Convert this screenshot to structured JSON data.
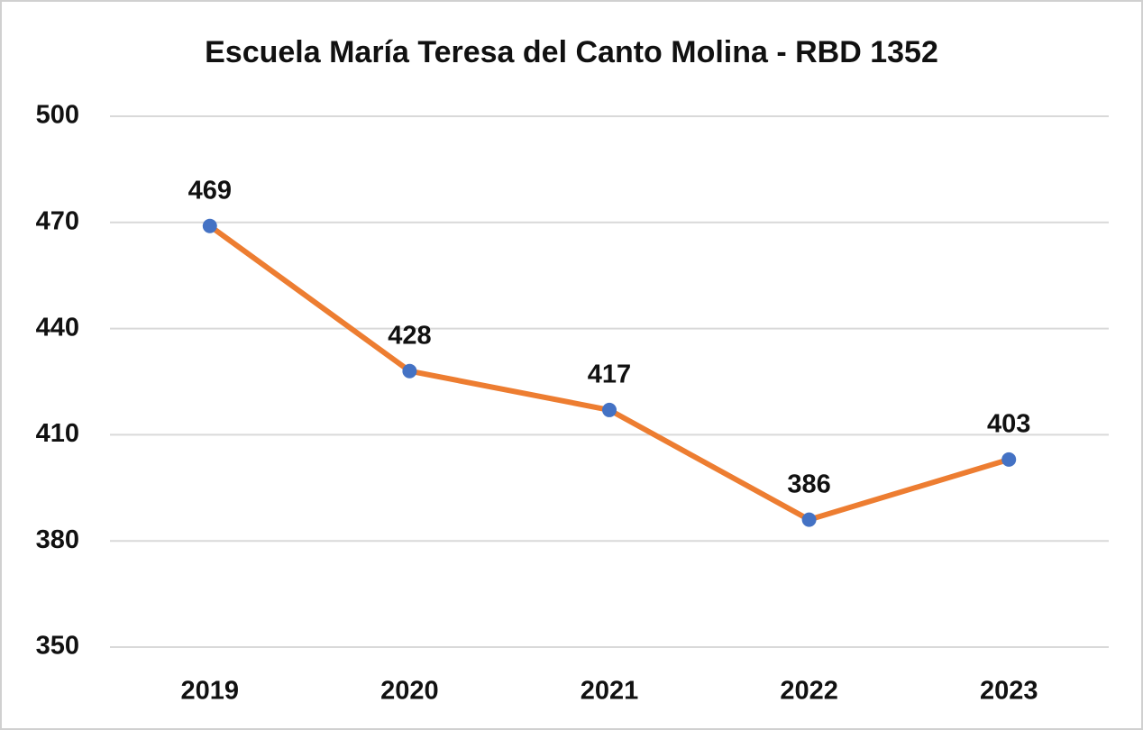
{
  "chart_data": {
    "type": "line",
    "title": "Escuela María Teresa del Canto Molina - RBD 1352",
    "categories": [
      "2019",
      "2020",
      "2021",
      "2022",
      "2023"
    ],
    "series": [
      {
        "name": "RBD 1352",
        "color": "#ed7d31",
        "marker_color": "#4472c4",
        "values": [
          469,
          428,
          417,
          386,
          403
        ]
      }
    ],
    "ylim": [
      350,
      500
    ],
    "yticks": [
      350,
      380,
      410,
      440,
      470,
      500
    ],
    "grid": true,
    "data_labels": true
  }
}
